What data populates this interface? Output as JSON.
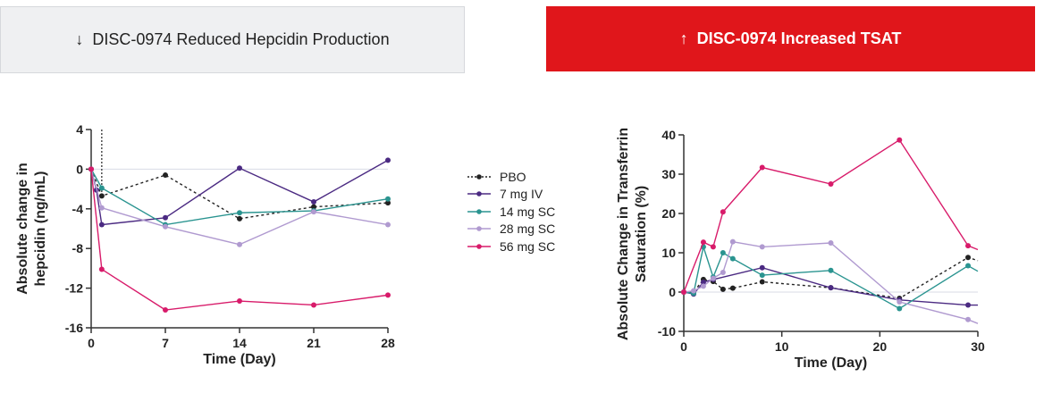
{
  "banners": {
    "left": {
      "arrow": "↓",
      "text": "DISC-0974 Reduced Hepcidin Production"
    },
    "right": {
      "arrow": "↑",
      "text": "DISC-0974 Increased TSAT"
    }
  },
  "legend": [
    {
      "name": "PBO",
      "color": "#222222",
      "dashed": true
    },
    {
      "name": "7 mg IV",
      "color": "#4b2a82",
      "dashed": false
    },
    {
      "name": "14 mg SC",
      "color": "#2a9490",
      "dashed": false
    },
    {
      "name": "28 mg SC",
      "color": "#b09ad0",
      "dashed": false
    },
    {
      "name": "56 mg SC",
      "color": "#d81b6a",
      "dashed": false
    }
  ],
  "chart_data": [
    {
      "type": "line",
      "title": "",
      "xlabel": "Time (Day)",
      "ylabel": "Absolute change in hepcidin (ng/mL)",
      "xlim": [
        0,
        28
      ],
      "ylim": [
        -16,
        4
      ],
      "xticks": [
        0,
        7,
        14,
        21,
        28
      ],
      "yticks": [
        4,
        0,
        -4,
        -8,
        -12,
        -16
      ],
      "series": [
        {
          "name": "PBO",
          "points": [
            [
              0,
              0
            ],
            [
              1,
              -2.7
            ],
            [
              7,
              -0.6
            ],
            [
              14,
              -5
            ],
            [
              21,
              -3.8
            ],
            [
              28,
              -3.4
            ]
          ]
        },
        {
          "name": "7 mg IV",
          "points": [
            [
              0,
              0
            ],
            [
              0.5,
              -2.1
            ],
            [
              1,
              -5.6
            ],
            [
              7,
              -4.9
            ],
            [
              14,
              0.1
            ],
            [
              21,
              -3.3
            ],
            [
              28,
              0.9
            ]
          ]
        },
        {
          "name": "14 mg SC",
          "points": [
            [
              0,
              0
            ],
            [
              1,
              -1.9
            ],
            [
              7,
              -5.6
            ],
            [
              14,
              -4.4
            ],
            [
              21,
              -4.2
            ],
            [
              28,
              -3
            ]
          ]
        },
        {
          "name": "28 mg SC",
          "points": [
            [
              0,
              0
            ],
            [
              1,
              -3.9
            ],
            [
              7,
              -5.8
            ],
            [
              14,
              -7.6
            ],
            [
              21,
              -4.3
            ],
            [
              28,
              -5.6
            ]
          ]
        },
        {
          "name": "56 mg SC",
          "points": [
            [
              0,
              0
            ],
            [
              1,
              -10.1
            ],
            [
              7,
              -14.2
            ],
            [
              14,
              -13.3
            ],
            [
              21,
              -13.7
            ],
            [
              28,
              -12.7
            ]
          ]
        }
      ]
    },
    {
      "type": "line",
      "title": "",
      "xlabel": "Time (Day)",
      "ylabel": "Absolute Change in Transferrin Saturation (%)",
      "ylabel_lines": [
        "Absolute Change in Transferrin",
        "Saturation (%)"
      ],
      "xlim": [
        0,
        30
      ],
      "ylim": [
        -10,
        40
      ],
      "xticks": [
        0,
        10,
        20,
        30
      ],
      "yticks": [
        40,
        30,
        20,
        10,
        0,
        -10
      ],
      "series": [
        {
          "name": "PBO",
          "points": [
            [
              0,
              0
            ],
            [
              1,
              0
            ],
            [
              2,
              3.2
            ],
            [
              3,
              2.7
            ],
            [
              4,
              0.7
            ],
            [
              5,
              1
            ],
            [
              8,
              2.6
            ],
            [
              15,
              1.1
            ],
            [
              22,
              -1.6
            ],
            [
              29,
              8.8
            ],
            [
              30,
              8
            ]
          ]
        },
        {
          "name": "7 mg IV",
          "points": [
            [
              0,
              0
            ],
            [
              1,
              -0.5
            ],
            [
              2,
              2.5
            ],
            [
              3,
              3.2
            ],
            [
              8,
              6.2
            ],
            [
              15,
              1.1
            ],
            [
              22,
              -2
            ],
            [
              29,
              -3.3
            ],
            [
              30,
              -3.3
            ]
          ]
        },
        {
          "name": "14 mg SC",
          "points": [
            [
              0,
              0
            ],
            [
              1,
              -0.3
            ],
            [
              2,
              11.5
            ],
            [
              3,
              3.8
            ],
            [
              4,
              10
            ],
            [
              5,
              8.5
            ],
            [
              8,
              4.3
            ],
            [
              15,
              5.5
            ],
            [
              22,
              -4.2
            ],
            [
              29,
              6.7
            ],
            [
              30,
              5.3
            ]
          ]
        },
        {
          "name": "28 mg SC",
          "points": [
            [
              0,
              0
            ],
            [
              1,
              0.3
            ],
            [
              2,
              1.5
            ],
            [
              3,
              3.5
            ],
            [
              4,
              5
            ],
            [
              5,
              12.8
            ],
            [
              8,
              11.5
            ],
            [
              15,
              12.5
            ],
            [
              22,
              -2.5
            ],
            [
              29,
              -7
            ],
            [
              30,
              -8
            ]
          ]
        },
        {
          "name": "56 mg SC",
          "points": [
            [
              0,
              0
            ],
            [
              2,
              12.7
            ],
            [
              3,
              11.5
            ],
            [
              4,
              20.4
            ],
            [
              8,
              31.7
            ],
            [
              15,
              27.5
            ],
            [
              22,
              38.7
            ],
            [
              29,
              11.8
            ],
            [
              30,
              10.8
            ]
          ]
        }
      ]
    }
  ]
}
